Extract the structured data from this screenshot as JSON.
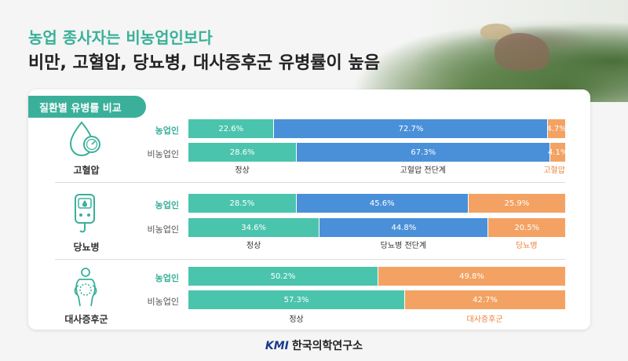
{
  "header": {
    "line1": "농업 종사자는 비농업인보다",
    "line2": "비만, 고혈압, 당뇨병, 대사증후군 유병률이 높음"
  },
  "card_tab": "질환별 유병률 비교",
  "colors": {
    "normal": "#4bc4ad",
    "pre": "#4a90d9",
    "disease": "#f3a263",
    "accent": "#3ab09a"
  },
  "chart_data": [
    {
      "type": "bar",
      "stacked": true,
      "orientation": "horizontal",
      "title": "고혈압",
      "categories": [
        "농업인",
        "비농업인"
      ],
      "series": [
        {
          "name": "정상",
          "values": [
            22.6,
            28.6
          ],
          "labels": [
            "22.6%",
            "28.6%"
          ],
          "color": "#4bc4ad"
        },
        {
          "name": "고혈압 전단계",
          "values": [
            72.7,
            67.3
          ],
          "labels": [
            "72.7%",
            "67.3%"
          ],
          "color": "#4a90d9"
        },
        {
          "name": "고혈압",
          "values": [
            4.7,
            4.1
          ],
          "labels": [
            "4.7%",
            "4.1%"
          ],
          "color": "#f3a263"
        }
      ],
      "legend_placement": "below"
    },
    {
      "type": "bar",
      "stacked": true,
      "orientation": "horizontal",
      "title": "당뇨병",
      "categories": [
        "농업인",
        "비농업인"
      ],
      "series": [
        {
          "name": "정상",
          "values": [
            28.5,
            34.6
          ],
          "labels": [
            "28.5%",
            "34.6%"
          ],
          "color": "#4bc4ad"
        },
        {
          "name": "당뇨병 전단계",
          "values": [
            45.6,
            44.8
          ],
          "labels": [
            "45.6%",
            "44.8%"
          ],
          "color": "#4a90d9"
        },
        {
          "name": "당뇨병",
          "values": [
            25.9,
            20.5
          ],
          "labels": [
            "25.9%",
            "20.5%"
          ],
          "color": "#f3a263"
        }
      ],
      "legend_placement": "below"
    },
    {
      "type": "bar",
      "stacked": true,
      "orientation": "horizontal",
      "title": "대사증후군",
      "categories": [
        "농업인",
        "비농업인"
      ],
      "series": [
        {
          "name": "정상",
          "values": [
            50.2,
            57.3
          ],
          "labels": [
            "50.2%",
            "57.3%"
          ],
          "color": "#4bc4ad"
        },
        {
          "name": "대사증후군",
          "values": [
            49.8,
            42.7
          ],
          "labels": [
            "49.8%",
            "42.7%"
          ],
          "color": "#f3a263"
        }
      ],
      "legend_placement": "below"
    }
  ],
  "footer": {
    "logo": "KMI",
    "org": "한국의학연구소"
  }
}
